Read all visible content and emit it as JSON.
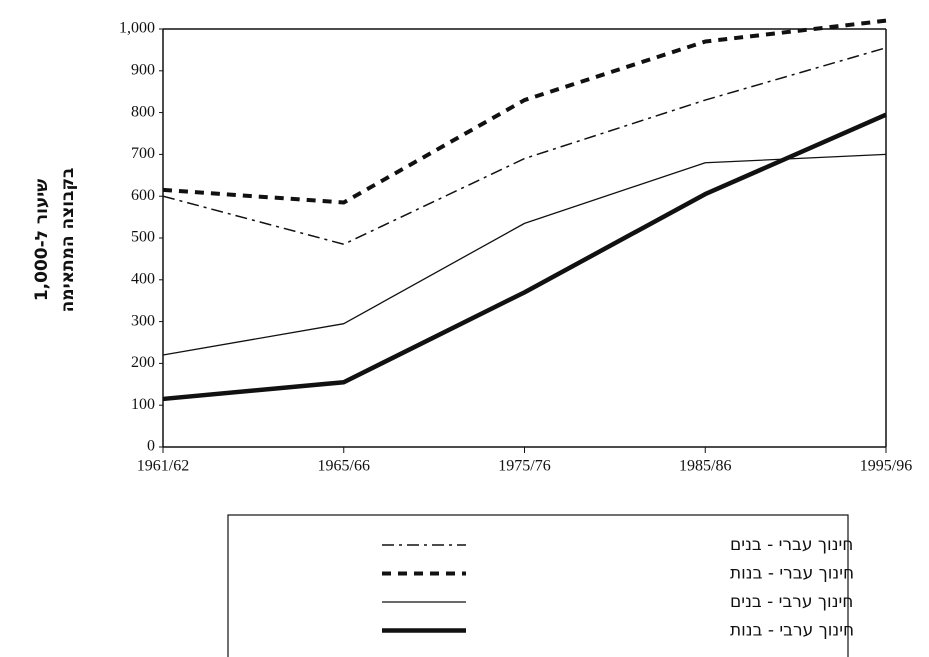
{
  "chart_data": {
    "type": "line",
    "ylabel": [
      "שיעור ל-1,000",
      "בקבוצה המתאימה"
    ],
    "categories": [
      "1961/62",
      "1965/66",
      "1975/76",
      "1985/86",
      "1995/96"
    ],
    "series": [
      {
        "name": "חינוך עברי - בנים",
        "color": "#111111",
        "line_style": "dashdot",
        "values": [
          600,
          485,
          690,
          830,
          955
        ]
      },
      {
        "name": "חינוך עברי - בנות",
        "color": "#111111",
        "line_style": "dashed",
        "values": [
          615,
          585,
          830,
          970,
          1020
        ]
      },
      {
        "name": "חינוך ערבי - בנים",
        "color": "#111111",
        "line_style": "thin",
        "values": [
          220,
          295,
          535,
          680,
          700
        ]
      },
      {
        "name": "חינוך ערבי - בנות",
        "color": "#111111",
        "line_style": "thick",
        "values": [
          115,
          155,
          370,
          605,
          795
        ]
      }
    ],
    "ylim": [
      0,
      1000
    ],
    "yticks": [
      0,
      100,
      200,
      300,
      400,
      500,
      600,
      700,
      800,
      900,
      {
        "value": 1000,
        "label": "1,000"
      }
    ],
    "grid": false
  }
}
